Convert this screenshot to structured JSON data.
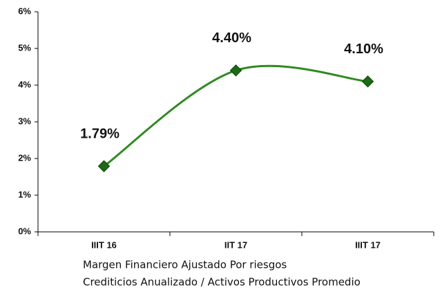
{
  "chart_data": {
    "type": "line",
    "categories": [
      "IIIT 16",
      "IIT 17",
      "IIIT 17"
    ],
    "series": [
      {
        "color": "#2e8b1f",
        "marker_color": "#1b6b12",
        "values": [
          1.79,
          4.4,
          4.1
        ],
        "value_labels": [
          "1.79%",
          "4.40%",
          "4.10%"
        ]
      }
    ],
    "ylim": [
      0,
      6
    ],
    "yticks": [
      {
        "value": 0,
        "label": "0%"
      },
      {
        "value": 1,
        "label": "1%"
      },
      {
        "value": 2,
        "label": "2%"
      },
      {
        "value": 3,
        "label": "3%"
      },
      {
        "value": 4,
        "label": "4%"
      },
      {
        "value": 5,
        "label": "5%"
      },
      {
        "value": 6,
        "label": "6%"
      }
    ],
    "smooth": true,
    "caption": [
      "Margen Financiero Ajustado Por riesgos",
      "Crediticios Anualizado / Activos Productivos Promedio"
    ]
  }
}
